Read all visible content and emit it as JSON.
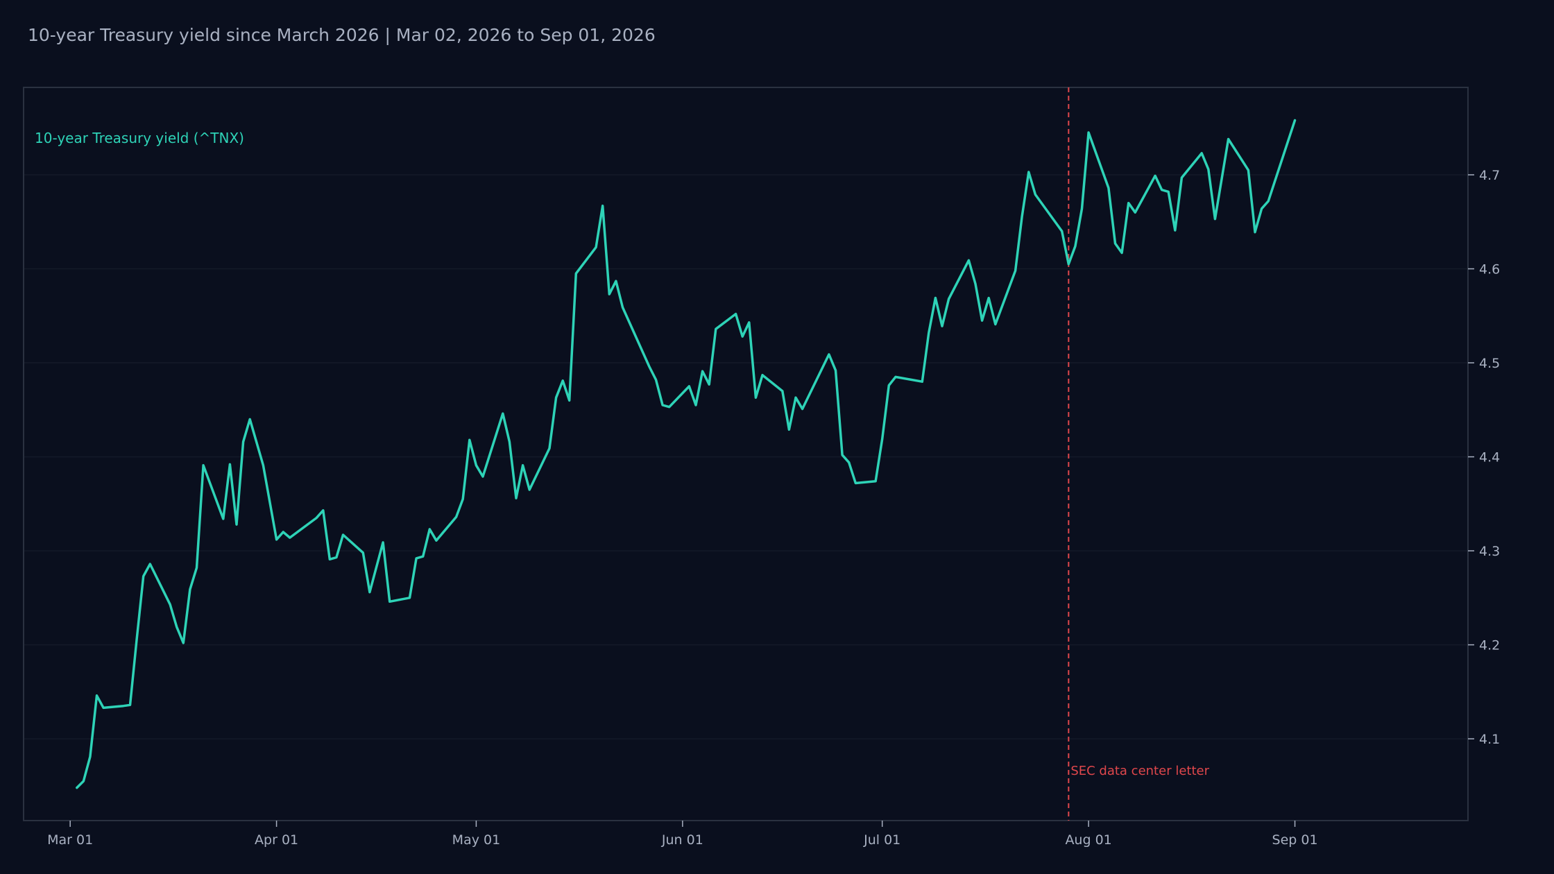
{
  "header": {
    "title": "10-year Treasury yield since March 2026 | Mar 02, 2026 to Sep 01, 2026"
  },
  "colors": {
    "background": "#0a0f1e",
    "plot_border": "#2a3140",
    "series_line": "#2ed3b7",
    "event_line": "#e0474c",
    "tick_text": "#a9b1c2"
  },
  "chart_data": {
    "type": "line",
    "title": "10-year Treasury yield since March 2026 | Mar 02, 2026 to Sep 01, 2026",
    "xlabel": "",
    "ylabel": "",
    "xlim": [
      "2026-02-22",
      "2026-09-27"
    ],
    "ylim": [
      4.013,
      4.793
    ],
    "grid": true,
    "y_axis_side": "right",
    "x_ticks": [
      {
        "date": "2026-03-01",
        "label": "Mar 01"
      },
      {
        "date": "2026-04-01",
        "label": "Apr 01"
      },
      {
        "date": "2026-05-01",
        "label": "May 01"
      },
      {
        "date": "2026-06-01",
        "label": "Jun 01"
      },
      {
        "date": "2026-07-01",
        "label": "Jul 01"
      },
      {
        "date": "2026-08-01",
        "label": "Aug 01"
      },
      {
        "date": "2026-09-01",
        "label": "Sep 01"
      }
    ],
    "y_ticks": [
      {
        "value": 4.1,
        "label": "4.1"
      },
      {
        "value": 4.2,
        "label": "4.2"
      },
      {
        "value": 4.3,
        "label": "4.3"
      },
      {
        "value": 4.4,
        "label": "4.4"
      },
      {
        "value": 4.5,
        "label": "4.5"
      },
      {
        "value": 4.6,
        "label": "4.6"
      },
      {
        "value": 4.7,
        "label": "4.7"
      }
    ],
    "series": [
      {
        "name": "10-year Treasury yield (^TNX)",
        "points": [
          [
            "2026-03-02",
            4.048
          ],
          [
            "2026-03-03",
            4.055
          ],
          [
            "2026-03-04",
            4.081
          ],
          [
            "2026-03-05",
            4.146
          ],
          [
            "2026-03-06",
            4.133
          ],
          [
            "2026-03-09",
            4.135
          ],
          [
            "2026-03-10",
            4.136
          ],
          [
            "2026-03-11",
            4.206
          ],
          [
            "2026-03-12",
            4.273
          ],
          [
            "2026-03-13",
            4.286
          ],
          [
            "2026-03-16",
            4.243
          ],
          [
            "2026-03-17",
            4.219
          ],
          [
            "2026-03-18",
            4.202
          ],
          [
            "2026-03-19",
            4.259
          ],
          [
            "2026-03-20",
            4.282
          ],
          [
            "2026-03-21",
            4.391
          ],
          [
            "2026-03-24",
            4.334
          ],
          [
            "2026-03-25",
            4.392
          ],
          [
            "2026-03-26",
            4.328
          ],
          [
            "2026-03-27",
            4.416
          ],
          [
            "2026-03-28",
            4.44
          ],
          [
            "2026-03-30",
            4.391
          ],
          [
            "2026-04-01",
            4.312
          ],
          [
            "2026-04-02",
            4.32
          ],
          [
            "2026-04-03",
            4.314
          ],
          [
            "2026-04-07",
            4.335
          ],
          [
            "2026-04-08",
            4.343
          ],
          [
            "2026-04-09",
            4.291
          ],
          [
            "2026-04-10",
            4.293
          ],
          [
            "2026-04-11",
            4.317
          ],
          [
            "2026-04-14",
            4.298
          ],
          [
            "2026-04-15",
            4.256
          ],
          [
            "2026-04-17",
            4.309
          ],
          [
            "2026-04-18",
            4.246
          ],
          [
            "2026-04-21",
            4.25
          ],
          [
            "2026-04-22",
            4.292
          ],
          [
            "2026-04-23",
            4.294
          ],
          [
            "2026-04-24",
            4.323
          ],
          [
            "2026-04-25",
            4.311
          ],
          [
            "2026-04-28",
            4.336
          ],
          [
            "2026-04-29",
            4.355
          ],
          [
            "2026-04-30",
            4.418
          ],
          [
            "2026-05-01",
            4.391
          ],
          [
            "2026-05-02",
            4.379
          ],
          [
            "2026-05-05",
            4.446
          ],
          [
            "2026-05-06",
            4.416
          ],
          [
            "2026-05-07",
            4.356
          ],
          [
            "2026-05-08",
            4.391
          ],
          [
            "2026-05-09",
            4.365
          ],
          [
            "2026-05-12",
            4.409
          ],
          [
            "2026-05-13",
            4.463
          ],
          [
            "2026-05-14",
            4.481
          ],
          [
            "2026-05-15",
            4.46
          ],
          [
            "2026-05-16",
            4.595
          ],
          [
            "2026-05-19",
            4.623
          ],
          [
            "2026-05-20",
            4.667
          ],
          [
            "2026-05-21",
            4.573
          ],
          [
            "2026-05-22",
            4.587
          ],
          [
            "2026-05-23",
            4.559
          ],
          [
            "2026-05-27",
            4.496
          ],
          [
            "2026-05-28",
            4.482
          ],
          [
            "2026-05-29",
            4.455
          ],
          [
            "2026-05-30",
            4.453
          ],
          [
            "2026-06-02",
            4.475
          ],
          [
            "2026-06-03",
            4.455
          ],
          [
            "2026-06-04",
            4.491
          ],
          [
            "2026-06-05",
            4.477
          ],
          [
            "2026-06-06",
            4.536
          ],
          [
            "2026-06-09",
            4.552
          ],
          [
            "2026-06-10",
            4.528
          ],
          [
            "2026-06-11",
            4.543
          ],
          [
            "2026-06-12",
            4.463
          ],
          [
            "2026-06-13",
            4.487
          ],
          [
            "2026-06-16",
            4.47
          ],
          [
            "2026-06-17",
            4.429
          ],
          [
            "2026-06-18",
            4.463
          ],
          [
            "2026-06-19",
            4.451
          ],
          [
            "2026-06-23",
            4.509
          ],
          [
            "2026-06-24",
            4.492
          ],
          [
            "2026-06-25",
            4.402
          ],
          [
            "2026-06-26",
            4.394
          ],
          [
            "2026-06-27",
            4.372
          ],
          [
            "2026-06-30",
            4.374
          ],
          [
            "2026-07-01",
            4.419
          ],
          [
            "2026-07-02",
            4.476
          ],
          [
            "2026-07-03",
            4.485
          ],
          [
            "2026-07-07",
            4.48
          ],
          [
            "2026-07-08",
            4.532
          ],
          [
            "2026-07-09",
            4.569
          ],
          [
            "2026-07-10",
            4.539
          ],
          [
            "2026-07-11",
            4.568
          ],
          [
            "2026-07-14",
            4.609
          ],
          [
            "2026-07-15",
            4.584
          ],
          [
            "2026-07-16",
            4.545
          ],
          [
            "2026-07-17",
            4.569
          ],
          [
            "2026-07-18",
            4.541
          ],
          [
            "2026-07-21",
            4.598
          ],
          [
            "2026-07-22",
            4.656
          ],
          [
            "2026-07-23",
            4.703
          ],
          [
            "2026-07-24",
            4.679
          ],
          [
            "2026-07-28",
            4.64
          ],
          [
            "2026-07-29",
            4.605
          ],
          [
            "2026-07-30",
            4.624
          ],
          [
            "2026-07-31",
            4.664
          ],
          [
            "2026-08-01",
            4.745
          ],
          [
            "2026-08-04",
            4.686
          ],
          [
            "2026-08-05",
            4.627
          ],
          [
            "2026-08-06",
            4.617
          ],
          [
            "2026-08-07",
            4.67
          ],
          [
            "2026-08-08",
            4.66
          ],
          [
            "2026-08-11",
            4.699
          ],
          [
            "2026-08-12",
            4.684
          ],
          [
            "2026-08-13",
            4.682
          ],
          [
            "2026-08-14",
            4.641
          ],
          [
            "2026-08-15",
            4.697
          ],
          [
            "2026-08-18",
            4.723
          ],
          [
            "2026-08-19",
            4.706
          ],
          [
            "2026-08-20",
            4.653
          ],
          [
            "2026-08-22",
            4.738
          ],
          [
            "2026-08-25",
            4.705
          ],
          [
            "2026-08-26",
            4.639
          ],
          [
            "2026-08-27",
            4.664
          ],
          [
            "2026-08-28",
            4.672
          ],
          [
            "2026-09-01",
            4.758
          ]
        ]
      }
    ],
    "annotations": [
      {
        "type": "vline",
        "date": "2026-07-29",
        "label": "SEC data center letter"
      }
    ]
  }
}
